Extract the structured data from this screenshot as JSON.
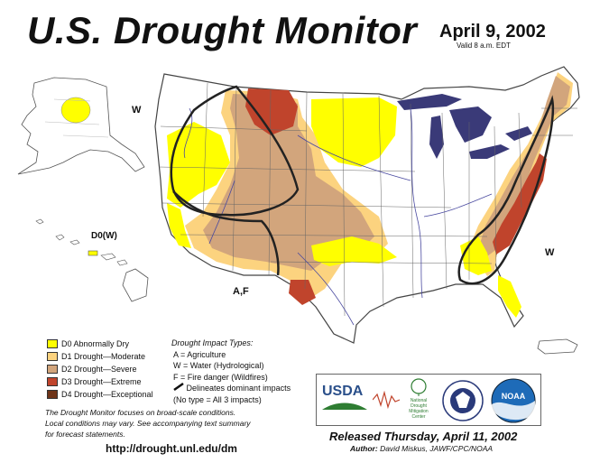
{
  "header": {
    "title": "U.S. Drought Monitor",
    "date": "April 9, 2002",
    "valid": "Valid 8 a.m. EDT"
  },
  "map_labels": {
    "w_northwest": "W",
    "w_east": "W",
    "af_southwest": "A,F",
    "d0w_hawaii": "D0(W)"
  },
  "legend": {
    "items": [
      {
        "label": "D0 Abnormally Dry",
        "color": "#ffff00"
      },
      {
        "label": "D1 Drought—Moderate",
        "color": "#fcd37f"
      },
      {
        "label": "D2 Drought—Severe",
        "color": "#d2a57c"
      },
      {
        "label": "D3 Drought—Extreme",
        "color": "#c0442c"
      },
      {
        "label": "D4 Drought—Exceptional",
        "color": "#6e3418"
      }
    ]
  },
  "impact": {
    "heading": "Drought Impact Types:",
    "a": "A = Agriculture",
    "w": "W = Water (Hydrological)",
    "f": "F = Fire danger (Wildfires)",
    "line_label": "Delineates dominant impacts",
    "no_type": "(No type = All 3 impacts)"
  },
  "notes": {
    "line1": "The Drought Monitor focuses on broad-scale conditions.",
    "line2": "Local conditions may vary. See accompanying text summary",
    "line3": "for forecast statements."
  },
  "footer": {
    "url": "http://drought.unl.edu/dm",
    "released": "Released Thursday, April 11, 2002",
    "author_label": "Author:",
    "author": "David Miskus, JAWF/CPC/NOAA"
  },
  "logos": {
    "usda": "USDA",
    "ndmc_1": "National",
    "ndmc_2": "Drought",
    "ndmc_3": "Mitigation",
    "ndmc_4": "Center",
    "noaa": "NOAA"
  },
  "colors": {
    "d0": "#ffff00",
    "d1": "#fcd37f",
    "d2": "#d2a57c",
    "d3": "#c0442c",
    "d4": "#6e3418",
    "lakes": "#3a3a78",
    "rivers": "#4a4aa0"
  }
}
